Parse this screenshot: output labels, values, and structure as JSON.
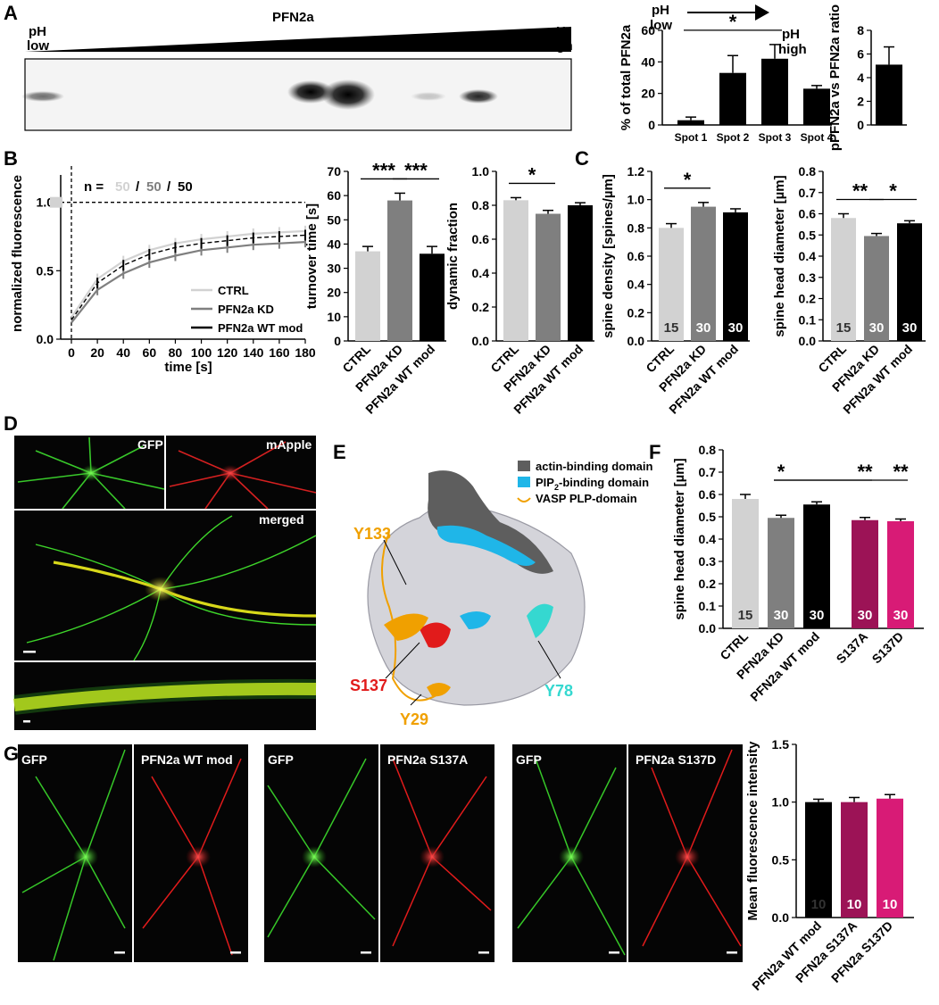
{
  "colors": {
    "ctrl": "#d2d2d2",
    "kd": "#7f7f7f",
    "wt": "#000000",
    "s137a": "#9c1356",
    "s137d": "#d81b76",
    "actin": "#5e5e5e",
    "pip2": "#1fb6e8",
    "vasp": "#f0a000",
    "gfp": "#3ed62a",
    "mapple": "#e81d1d",
    "merged": "#e4e418"
  },
  "panel_letters": [
    "A",
    "B",
    "C",
    "D",
    "E",
    "F",
    "G"
  ],
  "panelA": {
    "ph_low": [
      "pH",
      "low"
    ],
    "protein": "PFN2a",
    "ph_high": [
      "pH",
      "high"
    ],
    "arrow_low": [
      "pH",
      "low"
    ],
    "arrow_high": [
      "pH",
      "high"
    ]
  },
  "panelB": {
    "n_prefix": "n =",
    "n_values": [
      "50",
      "50",
      "50"
    ],
    "n_sep": "/",
    "legend": [
      "CTRL",
      "PFN2a KD",
      "PFN2a WT mod"
    ]
  },
  "panelD": {
    "labels": [
      "GFP",
      "mApple",
      "merged"
    ]
  },
  "panelE": {
    "legend": [
      "actin-binding domain",
      "PIP",
      "2",
      "-binding domain",
      "VASP PLP-domain"
    ],
    "residues": [
      "Y133",
      "S137",
      "Y29",
      "Y78"
    ]
  },
  "panelG": {
    "labels": [
      "GFP",
      "PFN2a WT mod",
      "GFP",
      "PFN2a S137A",
      "GFP",
      "PFN2a S137D"
    ]
  },
  "chart_data": [
    {
      "id": "A1",
      "type": "bar",
      "categories": [
        "Spot 1",
        "Spot 2",
        "Spot 3",
        "Spot 4"
      ],
      "values": [
        3,
        33,
        42,
        23
      ],
      "errors": [
        2,
        11,
        9,
        2
      ],
      "ylabel": "% of total PFN2a",
      "ylim": [
        0,
        60
      ],
      "yticks": [
        0,
        20,
        40,
        60
      ],
      "significance": [
        {
          "from": 0,
          "to": 2,
          "label": "*"
        }
      ]
    },
    {
      "id": "A2",
      "type": "bar",
      "categories": [
        ""
      ],
      "values": [
        5.1
      ],
      "errors": [
        1.5
      ],
      "ylabel": "pPFN2a vs PFN2a ratio",
      "ylim": [
        0,
        8
      ],
      "yticks": [
        0,
        2,
        4,
        6,
        8
      ]
    },
    {
      "id": "B1",
      "type": "line",
      "xlabel": "time [s]",
      "ylabel": "normalized fluorescence",
      "xlim": [
        0,
        180
      ],
      "ylim": [
        0,
        1.2
      ],
      "xticks": [
        0,
        20,
        40,
        60,
        80,
        100,
        120,
        140,
        160,
        180
      ],
      "yticks": [
        0.0,
        0.5,
        1.0
      ],
      "ytick_labels": [
        "0.0",
        "0.5",
        "1.0"
      ],
      "x": [
        0,
        20,
        40,
        60,
        80,
        100,
        120,
        140,
        160,
        180
      ],
      "series": [
        {
          "name": "CTRL",
          "values": [
            0.16,
            0.44,
            0.57,
            0.65,
            0.7,
            0.73,
            0.75,
            0.77,
            0.78,
            0.79
          ]
        },
        {
          "name": "PFN2a KD",
          "values": [
            0.12,
            0.36,
            0.48,
            0.56,
            0.61,
            0.65,
            0.67,
            0.69,
            0.7,
            0.71
          ]
        },
        {
          "name": "PFN2a WT mod",
          "values": [
            0.14,
            0.41,
            0.54,
            0.62,
            0.67,
            0.7,
            0.72,
            0.74,
            0.75,
            0.76
          ]
        }
      ]
    },
    {
      "id": "B2",
      "type": "bar",
      "categories": [
        "CTRL",
        "PFN2a KD",
        "PFN2a WT mod"
      ],
      "values": [
        37,
        58,
        36
      ],
      "errors": [
        2,
        3,
        3
      ],
      "ylabel": "turnover time [s]",
      "ylim": [
        0,
        70
      ],
      "yticks": [
        0,
        10,
        20,
        30,
        40,
        50,
        60,
        70
      ],
      "significance": [
        {
          "from": 0,
          "to": 1,
          "label": "***"
        },
        {
          "from": 1,
          "to": 2,
          "label": "***"
        }
      ]
    },
    {
      "id": "B3",
      "type": "bar",
      "categories": [
        "CTRL",
        "PFN2a KD",
        "PFN2a WT mod"
      ],
      "values": [
        0.83,
        0.75,
        0.8
      ],
      "errors": [
        0.015,
        0.02,
        0.015
      ],
      "ylabel": "dynamic fraction",
      "ylim": [
        0,
        1.0
      ],
      "yticks": [
        0.0,
        0.2,
        0.4,
        0.6,
        0.8,
        1.0
      ],
      "ytick_labels": [
        "0.0",
        "0.2",
        "0.4",
        "0.6",
        "0.8",
        "1.0"
      ],
      "significance": [
        {
          "from": 0,
          "to": 1,
          "label": "*"
        }
      ]
    },
    {
      "id": "C1",
      "type": "bar",
      "categories": [
        "CTRL",
        "PFN2a KD",
        "PFN2a WT mod"
      ],
      "values": [
        0.8,
        0.95,
        0.91
      ],
      "errors": [
        0.03,
        0.03,
        0.025
      ],
      "n_labels": [
        "15",
        "30",
        "30"
      ],
      "ylabel": "spine density [spines/µm]",
      "ylim": [
        0,
        1.2
      ],
      "yticks": [
        0.0,
        0.2,
        0.4,
        0.6,
        0.8,
        1.0,
        1.2
      ],
      "ytick_labels": [
        "0.0",
        "0.2",
        "0.4",
        "0.6",
        "0.8",
        "1.0",
        "1.2"
      ],
      "significance": [
        {
          "from": 0,
          "to": 1,
          "label": "*"
        }
      ]
    },
    {
      "id": "C2",
      "type": "bar",
      "categories": [
        "CTRL",
        "PFN2a KD",
        "PFN2a WT mod"
      ],
      "values": [
        0.58,
        0.495,
        0.555
      ],
      "errors": [
        0.02,
        0.012,
        0.012
      ],
      "n_labels": [
        "15",
        "30",
        "30"
      ],
      "ylabel": "spine head diameter [µm]",
      "ylim": [
        0,
        0.8
      ],
      "yticks": [
        0.0,
        0.1,
        0.2,
        0.3,
        0.4,
        0.5,
        0.6,
        0.7,
        0.8
      ],
      "ytick_labels": [
        "0.0",
        "0.1",
        "0.2",
        "0.3",
        "0.4",
        "0.5",
        "0.6",
        "0.7",
        "0.8"
      ],
      "significance": [
        {
          "from": 0,
          "to": 1,
          "label": "**"
        },
        {
          "from": 1,
          "to": 2,
          "label": "*"
        }
      ]
    },
    {
      "id": "F",
      "type": "bar",
      "categories": [
        "CTRL",
        "PFN2a KD",
        "PFN2a WT mod",
        "S137A",
        "S137D"
      ],
      "values": [
        0.58,
        0.495,
        0.555,
        0.485,
        0.48
      ],
      "errors": [
        0.02,
        0.012,
        0.012,
        0.012,
        0.01
      ],
      "n_labels": [
        "15",
        "30",
        "30",
        "30",
        "30"
      ],
      "ylabel": "spine head diameter [µm]",
      "ylim": [
        0,
        0.8
      ],
      "yticks": [
        0.0,
        0.1,
        0.2,
        0.3,
        0.4,
        0.5,
        0.6,
        0.7,
        0.8
      ],
      "ytick_labels": [
        "0.0",
        "0.1",
        "0.2",
        "0.3",
        "0.4",
        "0.5",
        "0.6",
        "0.7",
        "0.8"
      ],
      "significance": [
        {
          "from": 1,
          "to": 3,
          "label": "*",
          "mark": 1
        },
        {
          "label": "**",
          "mark": 3
        },
        {
          "label": "**",
          "mark": 4
        }
      ]
    },
    {
      "id": "G",
      "type": "bar",
      "categories": [
        "PFN2a WT mod",
        "PFN2a S137A",
        "PFN2a S137D"
      ],
      "values": [
        1.0,
        1.0,
        1.03
      ],
      "errors": [
        0.025,
        0.04,
        0.035
      ],
      "n_labels": [
        "10",
        "10",
        "10"
      ],
      "ylabel": "Mean fluorescence intensity",
      "ylim": [
        0,
        1.5
      ],
      "yticks": [
        0.0,
        0.5,
        1.0,
        1.5
      ],
      "ytick_labels": [
        "0.0",
        "0.5",
        "1.0",
        "1.5"
      ]
    }
  ]
}
